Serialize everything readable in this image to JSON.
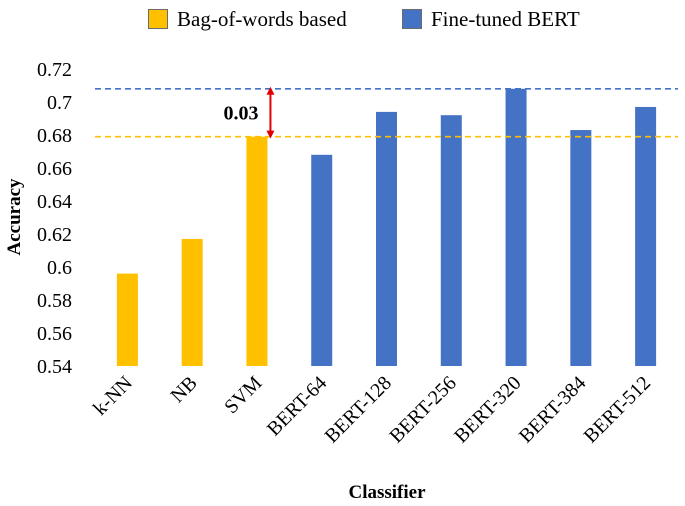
{
  "chart_data": {
    "type": "bar",
    "title": "",
    "xlabel": "Classifier",
    "ylabel": "Accuracy",
    "ylim": [
      0.54,
      0.72
    ],
    "yticks": [
      "0.54",
      "0.56",
      "0.58",
      "0.6",
      "0.62",
      "0.64",
      "0.66",
      "0.68",
      "0.7",
      "0.72"
    ],
    "categories": [
      "k-NN",
      "NB",
      "SVM",
      "BERT-64",
      "BERT-128",
      "BERT-256",
      "BERT-320",
      "BERT-384",
      "BERT-512"
    ],
    "values": [
      0.596,
      0.617,
      0.679,
      0.668,
      0.694,
      0.692,
      0.708,
      0.683,
      0.697
    ],
    "groups": [
      "Bag-of-words based",
      "Bag-of-words based",
      "Bag-of-words based",
      "Fine-tuned BERT",
      "Fine-tuned BERT",
      "Fine-tuned BERT",
      "Fine-tuned BERT",
      "Fine-tuned BERT",
      "Fine-tuned BERT"
    ],
    "legend": [
      {
        "name": "Bag-of-words based",
        "color": "#FFC000"
      },
      {
        "name": "Fine-tuned BERT",
        "color": "#4472C4"
      }
    ],
    "legend_position": "top",
    "grid": false,
    "reference_lines": [
      {
        "value": 0.708,
        "color": "#4472C4",
        "style": "dashed"
      },
      {
        "value": 0.679,
        "color": "#FFC000",
        "style": "dashed"
      }
    ],
    "annotation": {
      "text": "0.03",
      "from": 0.679,
      "to": 0.708,
      "arrow_color": "#E00000",
      "category": "SVM"
    }
  }
}
